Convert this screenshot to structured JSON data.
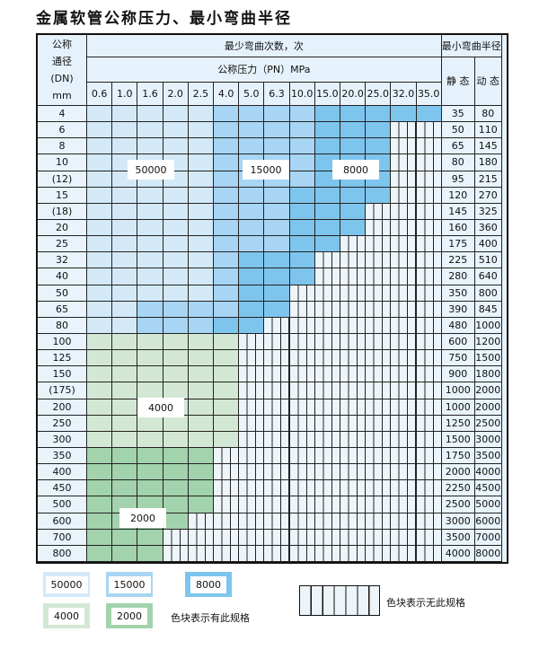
{
  "title": "金属软管公称压力、最小弯曲半径",
  "header": {
    "dn_label": [
      "公称",
      "通径",
      "(DN)",
      "mm"
    ],
    "bend_count": "最少弯曲次数，次",
    "pressure": "公称压力（PN）MPa",
    "min_radius": "最小弯曲半径",
    "static": "静 态",
    "dynamic": "动 态",
    "pressures": [
      "0.6",
      "1.0",
      "1.6",
      "2.0",
      "2.5",
      "4.0",
      "5.0",
      "6.3",
      "10.0",
      "15.0",
      "20.0",
      "25.0",
      "32.0",
      "35.0"
    ]
  },
  "colors": {
    "50000": "#d4e9f8",
    "15000": "#a8d5f3",
    "8000": "#7ec5ee",
    "4000": "#d3e8d4",
    "2000": "#a2d3ac"
  },
  "rows": [
    {
      "dn": "4",
      "static": "35",
      "dynamic": "80",
      "spans": [
        [
          "50000",
          5
        ],
        [
          "15000",
          4
        ],
        [
          "8000",
          5
        ]
      ]
    },
    {
      "dn": "6",
      "static": "50",
      "dynamic": "110",
      "spans": [
        [
          "50000",
          5
        ],
        [
          "15000",
          4
        ],
        [
          "8000",
          3
        ]
      ]
    },
    {
      "dn": "8",
      "static": "65",
      "dynamic": "145",
      "spans": [
        [
          "50000",
          5
        ],
        [
          "15000",
          4
        ],
        [
          "8000",
          3
        ]
      ]
    },
    {
      "dn": "10",
      "static": "80",
      "dynamic": "180",
      "spans": [
        [
          "50000",
          5
        ],
        [
          "15000",
          4
        ],
        [
          "8000",
          3
        ]
      ]
    },
    {
      "dn": "(12)",
      "static": "95",
      "dynamic": "215",
      "spans": [
        [
          "50000",
          5
        ],
        [
          "15000",
          4
        ],
        [
          "8000",
          3
        ]
      ]
    },
    {
      "dn": "15",
      "static": "120",
      "dynamic": "270",
      "spans": [
        [
          "50000",
          5
        ],
        [
          "15000",
          3
        ],
        [
          "8000",
          4
        ]
      ]
    },
    {
      "dn": "(18)",
      "static": "145",
      "dynamic": "325",
      "spans": [
        [
          "50000",
          5
        ],
        [
          "15000",
          3
        ],
        [
          "8000",
          3
        ]
      ]
    },
    {
      "dn": "20",
      "static": "160",
      "dynamic": "360",
      "spans": [
        [
          "50000",
          5
        ],
        [
          "15000",
          3
        ],
        [
          "8000",
          3
        ]
      ]
    },
    {
      "dn": "25",
      "static": "175",
      "dynamic": "400",
      "spans": [
        [
          "50000",
          5
        ],
        [
          "15000",
          3
        ],
        [
          "8000",
          2
        ]
      ]
    },
    {
      "dn": "32",
      "static": "225",
      "dynamic": "510",
      "spans": [
        [
          "50000",
          5
        ],
        [
          "15000",
          1
        ],
        [
          "8000",
          3
        ]
      ]
    },
    {
      "dn": "40",
      "static": "280",
      "dynamic": "640",
      "spans": [
        [
          "50000",
          5
        ],
        [
          "15000",
          1
        ],
        [
          "8000",
          3
        ]
      ]
    },
    {
      "dn": "50",
      "static": "350",
      "dynamic": "800",
      "spans": [
        [
          "50000",
          5
        ],
        [
          "15000",
          1
        ],
        [
          "8000",
          2
        ]
      ]
    },
    {
      "dn": "65",
      "static": "390",
      "dynamic": "845",
      "spans": [
        [
          "50000",
          2
        ],
        [
          "15000",
          4
        ],
        [
          "8000",
          2
        ]
      ]
    },
    {
      "dn": "80",
      "static": "480",
      "dynamic": "1000",
      "spans": [
        [
          "50000",
          2
        ],
        [
          "15000",
          3
        ],
        [
          "8000",
          2
        ]
      ]
    },
    {
      "dn": "100",
      "static": "600",
      "dynamic": "1200",
      "spans": [
        [
          "4000",
          6
        ]
      ]
    },
    {
      "dn": "125",
      "static": "750",
      "dynamic": "1500",
      "spans": [
        [
          "4000",
          6
        ]
      ]
    },
    {
      "dn": "150",
      "static": "900",
      "dynamic": "1800",
      "spans": [
        [
          "4000",
          6
        ]
      ]
    },
    {
      "dn": "(175)",
      "static": "1000",
      "dynamic": "2000",
      "spans": [
        [
          "4000",
          6
        ]
      ]
    },
    {
      "dn": "200",
      "static": "1000",
      "dynamic": "2000",
      "spans": [
        [
          "4000",
          6
        ]
      ]
    },
    {
      "dn": "250",
      "static": "1250",
      "dynamic": "2500",
      "spans": [
        [
          "4000",
          6
        ]
      ]
    },
    {
      "dn": "300",
      "static": "1500",
      "dynamic": "3000",
      "spans": [
        [
          "4000",
          6
        ]
      ]
    },
    {
      "dn": "350",
      "static": "1750",
      "dynamic": "3500",
      "spans": [
        [
          "2000",
          5
        ]
      ]
    },
    {
      "dn": "400",
      "static": "2000",
      "dynamic": "4000",
      "spans": [
        [
          "2000",
          5
        ]
      ]
    },
    {
      "dn": "450",
      "static": "2250",
      "dynamic": "4500",
      "spans": [
        [
          "2000",
          5
        ]
      ]
    },
    {
      "dn": "500",
      "static": "2500",
      "dynamic": "5000",
      "spans": [
        [
          "2000",
          5
        ]
      ]
    },
    {
      "dn": "600",
      "static": "3000",
      "dynamic": "6000",
      "spans": [
        [
          "2000",
          4
        ]
      ]
    },
    {
      "dn": "700",
      "static": "3500",
      "dynamic": "7000",
      "spans": [
        [
          "2000",
          3
        ]
      ]
    },
    {
      "dn": "800",
      "static": "4000",
      "dynamic": "8000",
      "spans": [
        [
          "2000",
          3
        ]
      ]
    }
  ],
  "labels": {
    "l50000": "50000",
    "l15000": "15000",
    "l8000": "8000",
    "l4000": "4000",
    "l2000": "2000"
  },
  "legend": {
    "items": [
      "50000",
      "15000",
      "8000",
      "4000",
      "2000"
    ],
    "has_spec": "色块表示有此规格",
    "no_spec": "色块表示无此规格"
  }
}
